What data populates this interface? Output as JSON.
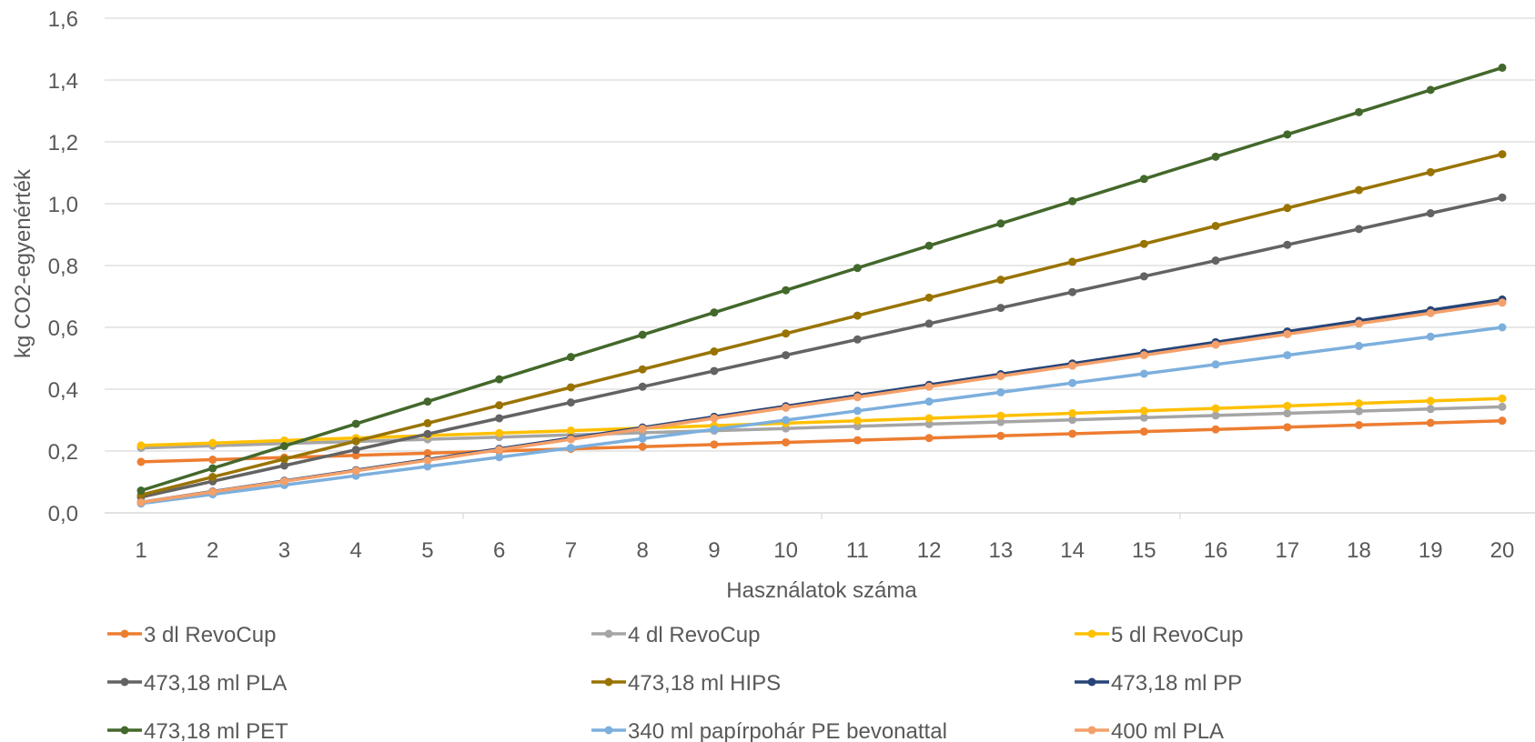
{
  "chart_data": {
    "type": "line",
    "title": "",
    "xlabel": "Használatok száma",
    "ylabel": "kg CO2-egyenérték",
    "x": [
      1,
      2,
      3,
      4,
      5,
      6,
      7,
      8,
      9,
      10,
      11,
      12,
      13,
      14,
      15,
      16,
      17,
      18,
      19,
      20
    ],
    "xticks": [
      "1",
      "2",
      "3",
      "4",
      "5",
      "6",
      "7",
      "8",
      "9",
      "10",
      "11",
      "12",
      "13",
      "14",
      "15",
      "16",
      "17",
      "18",
      "19",
      "20"
    ],
    "ylim": [
      0,
      1.6
    ],
    "yticks": [
      "0,0",
      "0,2",
      "0,4",
      "0,6",
      "0,8",
      "1,0",
      "1,2",
      "1,4",
      "1,6"
    ],
    "grid": "horizontal",
    "legend_position": "bottom",
    "series": [
      {
        "name": "3 dl RevoCup",
        "color": "#ED7D31",
        "values": [
          0.165,
          0.172,
          0.179,
          0.186,
          0.193,
          0.2,
          0.207,
          0.214,
          0.221,
          0.228,
          0.235,
          0.242,
          0.249,
          0.256,
          0.263,
          0.27,
          0.277,
          0.284,
          0.291,
          0.298
        ]
      },
      {
        "name": "4 dl RevoCup",
        "color": "#A5A5A5",
        "values": [
          0.21,
          0.217,
          0.224,
          0.231,
          0.238,
          0.245,
          0.252,
          0.259,
          0.266,
          0.273,
          0.28,
          0.287,
          0.294,
          0.301,
          0.308,
          0.315,
          0.322,
          0.329,
          0.336,
          0.343
        ]
      },
      {
        "name": "5 dl RevoCup",
        "color": "#FFC000",
        "values": [
          0.218,
          0.226,
          0.234,
          0.242,
          0.25,
          0.258,
          0.266,
          0.274,
          0.282,
          0.29,
          0.298,
          0.306,
          0.314,
          0.322,
          0.33,
          0.338,
          0.346,
          0.354,
          0.362,
          0.37
        ]
      },
      {
        "name": "473,18 ml PLA",
        "color": "#636363",
        "values": [
          0.051,
          0.102,
          0.153,
          0.204,
          0.255,
          0.306,
          0.357,
          0.408,
          0.459,
          0.51,
          0.561,
          0.612,
          0.663,
          0.714,
          0.765,
          0.816,
          0.867,
          0.918,
          0.969,
          1.02
        ]
      },
      {
        "name": "473,18 ml HIPS",
        "color": "#997300",
        "values": [
          0.058,
          0.116,
          0.174,
          0.232,
          0.29,
          0.348,
          0.406,
          0.464,
          0.522,
          0.58,
          0.638,
          0.696,
          0.754,
          0.812,
          0.87,
          0.928,
          0.986,
          1.044,
          1.102,
          1.16
        ]
      },
      {
        "name": "473,18 ml PP",
        "color": "#264478",
        "values": [
          0.0345,
          0.069,
          0.1035,
          0.138,
          0.1725,
          0.207,
          0.2415,
          0.276,
          0.3105,
          0.345,
          0.3795,
          0.414,
          0.4485,
          0.483,
          0.5175,
          0.552,
          0.5865,
          0.621,
          0.6555,
          0.69
        ]
      },
      {
        "name": "473,18 ml PET",
        "color": "#43682B",
        "values": [
          0.072,
          0.144,
          0.216,
          0.288,
          0.36,
          0.432,
          0.504,
          0.576,
          0.648,
          0.72,
          0.792,
          0.864,
          0.936,
          1.008,
          1.08,
          1.152,
          1.224,
          1.296,
          1.368,
          1.44
        ]
      },
      {
        "name": "340 ml papírpohár PE bevonattal",
        "color": "#7CAFDD",
        "values": [
          0.03,
          0.06,
          0.09,
          0.12,
          0.15,
          0.18,
          0.21,
          0.24,
          0.27,
          0.3,
          0.33,
          0.36,
          0.39,
          0.42,
          0.45,
          0.48,
          0.51,
          0.54,
          0.57,
          0.6
        ]
      },
      {
        "name": "400 ml PLA",
        "color": "#F4A06A",
        "values": [
          0.034,
          0.068,
          0.102,
          0.136,
          0.17,
          0.204,
          0.238,
          0.272,
          0.306,
          0.34,
          0.374,
          0.408,
          0.442,
          0.476,
          0.51,
          0.544,
          0.578,
          0.612,
          0.646,
          0.68
        ]
      }
    ]
  }
}
